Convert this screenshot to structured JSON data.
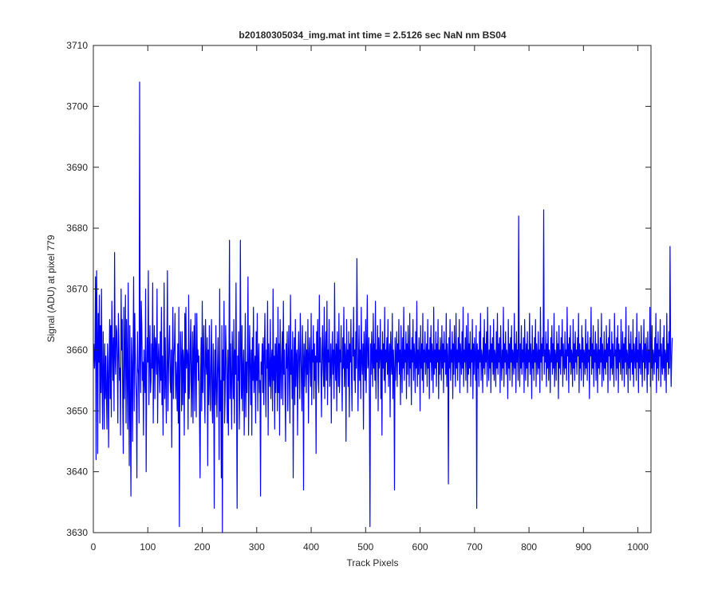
{
  "chart_data": {
    "type": "line",
    "title": "b20180305034_img.mat int time = 2.5126 sec  NaN nm BS04",
    "xlabel": "Track Pixels",
    "ylabel": "Signal (ADU) at pixel 779",
    "xlim": [
      0,
      1024
    ],
    "ylim": [
      3630,
      3710
    ],
    "xticks": [
      0,
      100,
      200,
      300,
      400,
      500,
      600,
      700,
      800,
      900,
      1000
    ],
    "yticks": [
      3630,
      3640,
      3650,
      3660,
      3670,
      3680,
      3690,
      3700,
      3710
    ],
    "grid": false,
    "legend": "none",
    "series": [
      {
        "color": "#0000ff",
        "x_start": 1,
        "x_step": 1,
        "values": [
          3661,
          3657,
          3659,
          3672,
          3642,
          3673,
          3663,
          3643,
          3666,
          3658,
          3669,
          3648,
          3664,
          3653,
          3670,
          3655,
          3647,
          3663,
          3657,
          3647,
          3661,
          3652,
          3659,
          3653,
          3647,
          3661,
          3656,
          3644,
          3658,
          3665,
          3652,
          3664,
          3649,
          3668,
          3661,
          3655,
          3662,
          3650,
          3676,
          3659,
          3656,
          3664,
          3663,
          3658,
          3648,
          3666,
          3662,
          3655,
          3657,
          3646,
          3670,
          3660,
          3665,
          3651,
          3643,
          3667,
          3652,
          3660,
          3669,
          3648,
          3665,
          3658,
          3647,
          3671,
          3655,
          3641,
          3664,
          3651,
          3636,
          3662,
          3658,
          3645,
          3659,
          3672,
          3650,
          3666,
          3660,
          3655,
          3652,
          3639,
          3663,
          3657,
          3656,
          3648,
          3704,
          3659,
          3653,
          3668,
          3664,
          3655,
          3658,
          3646,
          3660,
          3655,
          3653,
          3670,
          3640,
          3656,
          3662,
          3658,
          3673,
          3651,
          3659,
          3664,
          3653,
          3655,
          3661,
          3657,
          3671,
          3648,
          3659,
          3664,
          3652,
          3662,
          3660,
          3656,
          3670,
          3648,
          3658,
          3661,
          3657,
          3653,
          3663,
          3655,
          3667,
          3651,
          3659,
          3646,
          3657,
          3671,
          3652,
          3662,
          3655,
          3648,
          3659,
          3673,
          3650,
          3656,
          3661,
          3664,
          3655,
          3653,
          3660,
          3644,
          3657,
          3667,
          3652,
          3659,
          3661,
          3666,
          3652,
          3658,
          3655,
          3650,
          3661,
          3648,
          3667,
          3631,
          3655,
          3663,
          3659,
          3650,
          3663,
          3651,
          3660,
          3658,
          3646,
          3666,
          3653,
          3667,
          3657,
          3660,
          3659,
          3647,
          3669,
          3652,
          3655,
          3661,
          3665,
          3649,
          3655,
          3663,
          3648,
          3660,
          3664,
          3650,
          3666,
          3658,
          3649,
          3666,
          3658,
          3660,
          3655,
          3659,
          3648,
          3639,
          3656,
          3662,
          3650,
          3668,
          3653,
          3659,
          3664,
          3653,
          3648,
          3665,
          3658,
          3656,
          3662,
          3641,
          3660,
          3651,
          3664,
          3655,
          3650,
          3658,
          3665,
          3651,
          3648,
          3661,
          3655,
          3634,
          3660,
          3651,
          3664,
          3654,
          3649,
          3657,
          3662,
          3655,
          3642,
          3670,
          3650,
          3655,
          3639,
          3664,
          3630,
          3660,
          3655,
          3668,
          3648,
          3652,
          3664,
          3659,
          3655,
          3648,
          3660,
          3646,
          3658,
          3678,
          3652,
          3661,
          3655,
          3647,
          3663,
          3658,
          3652,
          3665,
          3648,
          3660,
          3656,
          3671,
          3653,
          3634,
          3659,
          3655,
          3663,
          3647,
          3654,
          3678,
          3659,
          3652,
          3664,
          3650,
          3657,
          3660,
          3646,
          3655,
          3666,
          3649,
          3658,
          3653,
          3660,
          3672,
          3646,
          3655,
          3664,
          3657,
          3651,
          3660,
          3646,
          3662,
          3655,
          3667,
          3653,
          3657,
          3659,
          3648,
          3663,
          3655,
          3666,
          3650,
          3658,
          3661,
          3653,
          3655,
          3636,
          3658,
          3656,
          3661,
          3653,
          3662,
          3651,
          3659,
          3666,
          3655,
          3649,
          3660,
          3657,
          3668,
          3646,
          3661,
          3656,
          3654,
          3665,
          3652,
          3658,
          3660,
          3650,
          3670,
          3655,
          3659,
          3647,
          3661,
          3653,
          3662,
          3658,
          3650,
          3667,
          3653,
          3661,
          3646,
          3665,
          3658,
          3652,
          3659,
          3663,
          3651,
          3668,
          3656,
          3660,
          3653,
          3645,
          3661,
          3657,
          3663,
          3650,
          3658,
          3664,
          3655,
          3648,
          3669,
          3656,
          3660,
          3652,
          3663,
          3639,
          3657,
          3662,
          3651,
          3665,
          3654,
          3659,
          3660,
          3646,
          3658,
          3663,
          3657,
          3652,
          3666,
          3661,
          3655,
          3650,
          3664,
          3659,
          3637,
          3661,
          3654,
          3658,
          3663,
          3653,
          3660,
          3656,
          3665,
          3648,
          3659,
          3662,
          3657,
          3654,
          3666,
          3651,
          3660,
          3658,
          3664,
          3652,
          3661,
          3655,
          3659,
          3643,
          3663,
          3658,
          3665,
          3655,
          3653,
          3669,
          3658,
          3662,
          3656,
          3649,
          3660,
          3664,
          3657,
          3654,
          3667,
          3652,
          3659,
          3663,
          3655,
          3668,
          3651,
          3660,
          3658,
          3665,
          3654,
          3657,
          3661,
          3648,
          3659,
          3663,
          3656,
          3660,
          3652,
          3671,
          3658,
          3655,
          3661,
          3650,
          3663,
          3659,
          3654,
          3666,
          3653,
          3660,
          3658,
          3664,
          3656,
          3650,
          3662,
          3657,
          3667,
          3654,
          3661,
          3659,
          3645,
          3665,
          3657,
          3660,
          3654,
          3663,
          3649,
          3661,
          3658,
          3665,
          3656,
          3650,
          3662,
          3659,
          3667,
          3655,
          3660,
          3653,
          3663,
          3657,
          3675,
          3661,
          3650,
          3658,
          3664,
          3655,
          3660,
          3652,
          3667,
          3658,
          3656,
          3661,
          3647,
          3663,
          3659,
          3655,
          3665,
          3653,
          3660,
          3669,
          3657,
          3658,
          3662,
          3651,
          3631,
          3661,
          3656,
          3663,
          3659,
          3654,
          3666,
          3657,
          3661,
          3655,
          3668,
          3652,
          3660,
          3658,
          3664,
          3650,
          3662,
          3657,
          3659,
          3665,
          3652,
          3660,
          3646,
          3663,
          3657,
          3661,
          3655,
          3667,
          3653,
          3660,
          3658,
          3662,
          3656,
          3665,
          3654,
          3659,
          3661,
          3649,
          3663,
          3658,
          3656,
          3666,
          3652,
          3660,
          3657,
          3637,
          3662,
          3655,
          3659,
          3663,
          3654,
          3661,
          3658,
          3665,
          3656,
          3660,
          3651,
          3664,
          3659,
          3653,
          3662,
          3657,
          3667,
          3655,
          3660,
          3658,
          3663,
          3652,
          3661,
          3656,
          3664,
          3659,
          3654,
          3666,
          3657,
          3660,
          3651,
          3662,
          3658,
          3665,
          3655,
          3661,
          3659,
          3653,
          3663,
          3657,
          3668,
          3654,
          3660,
          3656,
          3662,
          3659,
          3650,
          3664,
          3657,
          3661,
          3655,
          3666,
          3653,
          3660,
          3658,
          3663,
          3656,
          3659,
          3661,
          3654,
          3665,
          3657,
          3660,
          3652,
          3662,
          3658,
          3664,
          3655,
          3661,
          3659,
          3653,
          3667,
          3656,
          3660,
          3657,
          3663,
          3654,
          3661,
          3658,
          3665,
          3652,
          3660,
          3656,
          3662,
          3659,
          3655,
          3664,
          3657,
          3661,
          3653,
          3663,
          3658,
          3660,
          3656,
          3666,
          3654,
          3661,
          3659,
          3638,
          3662,
          3657,
          3665,
          3655,
          3660,
          3658,
          3663,
          3652,
          3661,
          3656,
          3664,
          3659,
          3654,
          3666,
          3657,
          3660,
          3655,
          3662,
          3658,
          3665,
          3653,
          3661,
          3659,
          3656,
          3663,
          3657,
          3667,
          3654,
          3660,
          3658,
          3662,
          3655,
          3664,
          3659,
          3653,
          3666,
          3656,
          3661,
          3657,
          3663,
          3654,
          3660,
          3658,
          3665,
          3652,
          3661,
          3656,
          3662,
          3659,
          3655,
          3664,
          3634,
          3661,
          3657,
          3660,
          3654,
          3663,
          3658,
          3666,
          3655,
          3660,
          3659,
          3653,
          3662,
          3657,
          3665,
          3656,
          3661,
          3658,
          3663,
          3654,
          3667,
          3659,
          3655,
          3660,
          3657,
          3664,
          3653,
          3661,
          3658,
          3662,
          3656,
          3665,
          3655,
          3660,
          3659,
          3654,
          3663,
          3657,
          3666,
          3656,
          3661,
          3658,
          3662,
          3653,
          3664,
          3659,
          3655,
          3660,
          3657,
          3667,
          3654,
          3661,
          3658,
          3663,
          3656,
          3660,
          3659,
          3652,
          3665,
          3657,
          3661,
          3655,
          3662,
          3658,
          3664,
          3654,
          3660,
          3659,
          3656,
          3666,
          3657,
          3661,
          3653,
          3663,
          3658,
          3660,
          3655,
          3682,
          3659,
          3654,
          3661,
          3657,
          3664,
          3656,
          3660,
          3658,
          3662,
          3653,
          3665,
          3659,
          3655,
          3661,
          3657,
          3663,
          3654,
          3660,
          3658,
          3666,
          3656,
          3661,
          3659,
          3652,
          3664,
          3657,
          3660,
          3655,
          3662,
          3658,
          3665,
          3654,
          3661,
          3659,
          3656,
          3663,
          3657,
          3660,
          3653,
          3667,
          3658,
          3661,
          3655,
          3662,
          3659,
          3683,
          3656,
          3660,
          3658,
          3663,
          3654,
          3661,
          3657,
          3665,
          3655,
          3660,
          3659,
          3653,
          3662,
          3658,
          3664,
          3656,
          3661,
          3657,
          3666,
          3654,
          3660,
          3659,
          3655,
          3663,
          3658,
          3661,
          3652,
          3664,
          3657,
          3660,
          3656,
          3662,
          3659,
          3665,
          3654,
          3661,
          3658,
          3656,
          3663,
          3657,
          3660,
          3655,
          3667,
          3659,
          3661,
          3653,
          3662,
          3658,
          3664,
          3656,
          3660,
          3659,
          3654,
          3665,
          3657,
          3661,
          3655,
          3663,
          3658,
          3660,
          3656,
          3662,
          3659,
          3666,
          3653,
          3661,
          3657,
          3660,
          3655,
          3664,
          3658,
          3662,
          3654,
          3660,
          3659,
          3656,
          3665,
          3657,
          3661,
          3655,
          3663,
          3658,
          3660,
          3652,
          3662,
          3659,
          3667,
          3656,
          3661,
          3657,
          3664,
          3654,
          3660,
          3658,
          3663,
          3655,
          3661,
          3659,
          3653,
          3665,
          3657,
          3660,
          3656,
          3662,
          3658,
          3666,
          3654,
          3661,
          3659,
          3655,
          3663,
          3657,
          3660,
          3656,
          3664,
          3658,
          3661,
          3653,
          3662,
          3659,
          3665,
          3655,
          3660,
          3657,
          3663,
          3656,
          3661,
          3658,
          3654,
          3666,
          3659,
          3660,
          3655,
          3662,
          3657,
          3664,
          3653,
          3661,
          3658,
          3660,
          3656,
          3665,
          3659,
          3655,
          3663,
          3657,
          3661,
          3654,
          3662,
          3658,
          3667,
          3656,
          3660,
          3659,
          3653,
          3664,
          3657,
          3661,
          3655,
          3663,
          3658,
          3660,
          3656,
          3665,
          3654,
          3661,
          3659,
          3657,
          3662,
          3655,
          3666,
          3658,
          3660,
          3653,
          3663,
          3657,
          3661,
          3656,
          3664,
          3659,
          3654,
          3660,
          3658,
          3665,
          3655,
          3661,
          3657,
          3662,
          3659,
          3653,
          3663,
          3656,
          3660,
          3658,
          3667,
          3654,
          3661,
          3657,
          3664,
          3655,
          3660,
          3659,
          3656,
          3662,
          3658,
          3666,
          3653,
          3661,
          3657,
          3663,
          3655,
          3660,
          3659,
          3665,
          3654,
          3661,
          3658,
          3656,
          3662,
          3657,
          3664,
          3655,
          3660,
          3659,
          3653,
          3666,
          3658,
          3661,
          3656,
          3663,
          3657,
          3677,
          3660,
          3654,
          3659,
          3662
        ]
      }
    ]
  }
}
